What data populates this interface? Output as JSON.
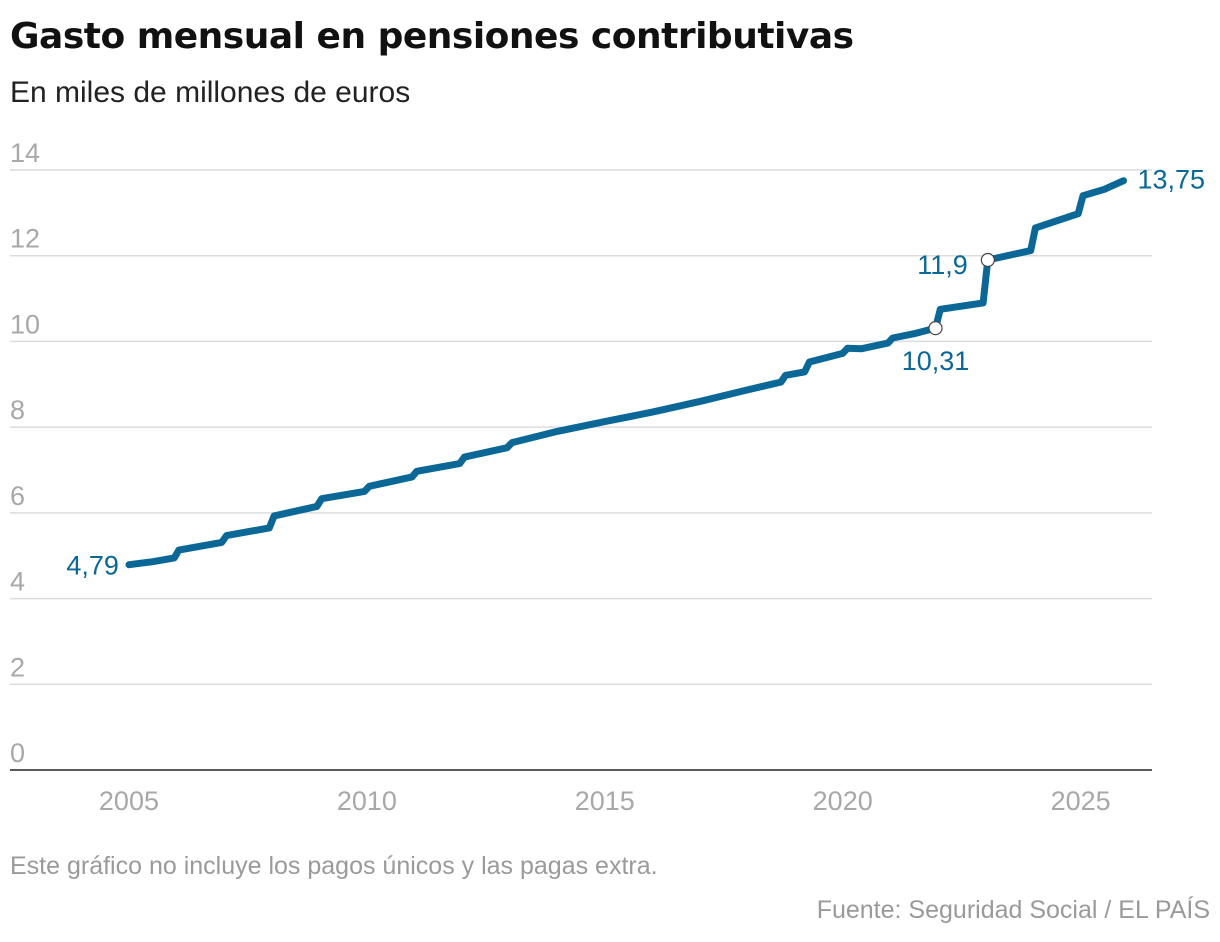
{
  "header": {
    "title": "Gasto mensual en pensiones contributivas",
    "subtitle": "En miles de millones de euros"
  },
  "footer": {
    "note": "Este gráfico no incluye los pagos únicos y las pagas extra.",
    "source": "Fuente: Seguridad Social / EL PAÍS"
  },
  "chart_data": {
    "type": "line",
    "title": "Gasto mensual en pensiones contributivas",
    "subtitle": "En miles de millones de euros",
    "xlabel": "",
    "ylabel": "",
    "xlim": [
      2002.5,
      2026.5
    ],
    "ylim": [
      0,
      14
    ],
    "x_ticks": [
      2005,
      2010,
      2015,
      2020,
      2025
    ],
    "x_tick_labels": [
      "2005",
      "2010",
      "2015",
      "2020",
      "2025"
    ],
    "y_ticks": [
      0,
      2,
      4,
      6,
      8,
      10,
      12,
      14
    ],
    "y_tick_labels": [
      "0",
      "2",
      "4",
      "6",
      "8",
      "10",
      "12",
      "14"
    ],
    "grid": true,
    "line_color": "#0a6796",
    "series": [
      {
        "values": [
          [
            2005.0,
            4.79
          ],
          [
            2005.5,
            4.86
          ],
          [
            2005.95,
            4.95
          ],
          [
            2006.05,
            5.13
          ],
          [
            2006.95,
            5.31
          ],
          [
            2007.05,
            5.47
          ],
          [
            2007.95,
            5.65
          ],
          [
            2008.05,
            5.93
          ],
          [
            2008.95,
            6.15
          ],
          [
            2009.05,
            6.33
          ],
          [
            2009.95,
            6.5
          ],
          [
            2010.05,
            6.62
          ],
          [
            2010.95,
            6.84
          ],
          [
            2011.05,
            6.97
          ],
          [
            2011.95,
            7.15
          ],
          [
            2012.05,
            7.3
          ],
          [
            2012.95,
            7.52
          ],
          [
            2013.05,
            7.64
          ],
          [
            2014.0,
            7.9
          ],
          [
            2015.0,
            8.13
          ],
          [
            2016.0,
            8.35
          ],
          [
            2017.0,
            8.6
          ],
          [
            2018.0,
            8.87
          ],
          [
            2018.5,
            9.0
          ],
          [
            2018.7,
            9.05
          ],
          [
            2018.8,
            9.21
          ],
          [
            2019.2,
            9.29
          ],
          [
            2019.3,
            9.52
          ],
          [
            2020.0,
            9.72
          ],
          [
            2020.1,
            9.84
          ],
          [
            2020.4,
            9.83
          ],
          [
            2020.95,
            9.96
          ],
          [
            2021.05,
            10.08
          ],
          [
            2021.5,
            10.18
          ],
          [
            2021.95,
            10.31
          ],
          [
            2022.05,
            10.75
          ],
          [
            2022.95,
            10.9
          ],
          [
            2023.05,
            11.9
          ],
          [
            2023.95,
            12.12
          ],
          [
            2024.05,
            12.65
          ],
          [
            2024.95,
            12.98
          ],
          [
            2025.05,
            13.4
          ],
          [
            2025.5,
            13.55
          ],
          [
            2025.9,
            13.75
          ]
        ]
      }
    ],
    "annotations": [
      {
        "label": "4,79",
        "x": 2005.0,
        "y": 4.79,
        "marker": false
      },
      {
        "label": "10,31",
        "x": 2021.95,
        "y": 10.31,
        "marker": true
      },
      {
        "label": "11,9",
        "x": 2023.05,
        "y": 11.9,
        "marker": true
      },
      {
        "label": "13,75",
        "x": 2025.9,
        "y": 13.75,
        "marker": false
      }
    ]
  }
}
